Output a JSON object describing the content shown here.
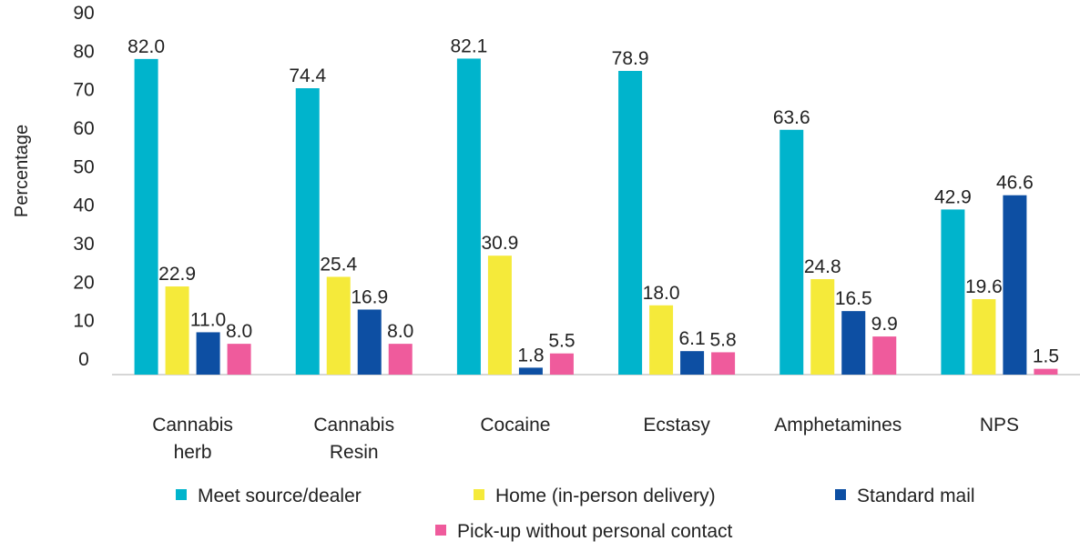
{
  "chart_data": {
    "type": "bar",
    "title": "",
    "xlabel": "",
    "ylabel": "Percentage",
    "ylim": [
      0,
      90
    ],
    "yticks": [
      "0",
      "10",
      "20",
      "30",
      "40",
      "50",
      "60",
      "70",
      "80",
      "90"
    ],
    "categories": [
      [
        "Cannabis",
        "herb"
      ],
      [
        "Cannabis",
        "Resin"
      ],
      [
        "Cocaine"
      ],
      [
        "Ecstasy"
      ],
      [
        "Amphetamines"
      ],
      [
        "NPS"
      ]
    ],
    "series": [
      {
        "name": "Meet source/dealer",
        "color": "#00b4cc",
        "values": [
          82.0,
          74.4,
          82.1,
          78.9,
          63.6,
          42.9
        ],
        "labels": [
          "82.0",
          "74.4",
          "82.1",
          "78.9",
          "63.6",
          "42.9"
        ]
      },
      {
        "name": "Home (in-person delivery)",
        "color": "#f5ea3a",
        "values": [
          22.9,
          25.4,
          30.9,
          18.0,
          24.8,
          19.6
        ],
        "labels": [
          "22.9",
          "25.4",
          "30.9",
          "18.0",
          "24.8",
          "19.6"
        ]
      },
      {
        "name": "Standard mail",
        "color": "#0d4fa3",
        "values": [
          11.0,
          16.9,
          1.8,
          6.1,
          16.5,
          46.6
        ],
        "labels": [
          "11.0",
          "16.9",
          "1.8",
          "6.1",
          "16.5",
          "46.6"
        ]
      },
      {
        "name": "Pick-up without personal contact",
        "color": "#ef5b9c",
        "values": [
          8.0,
          8.0,
          5.5,
          5.8,
          9.9,
          1.5
        ],
        "labels": [
          "8.0",
          "8.0",
          "5.5",
          "5.8",
          "9.9",
          "1.5"
        ]
      }
    ],
    "legend": "bottom",
    "grid": false
  }
}
